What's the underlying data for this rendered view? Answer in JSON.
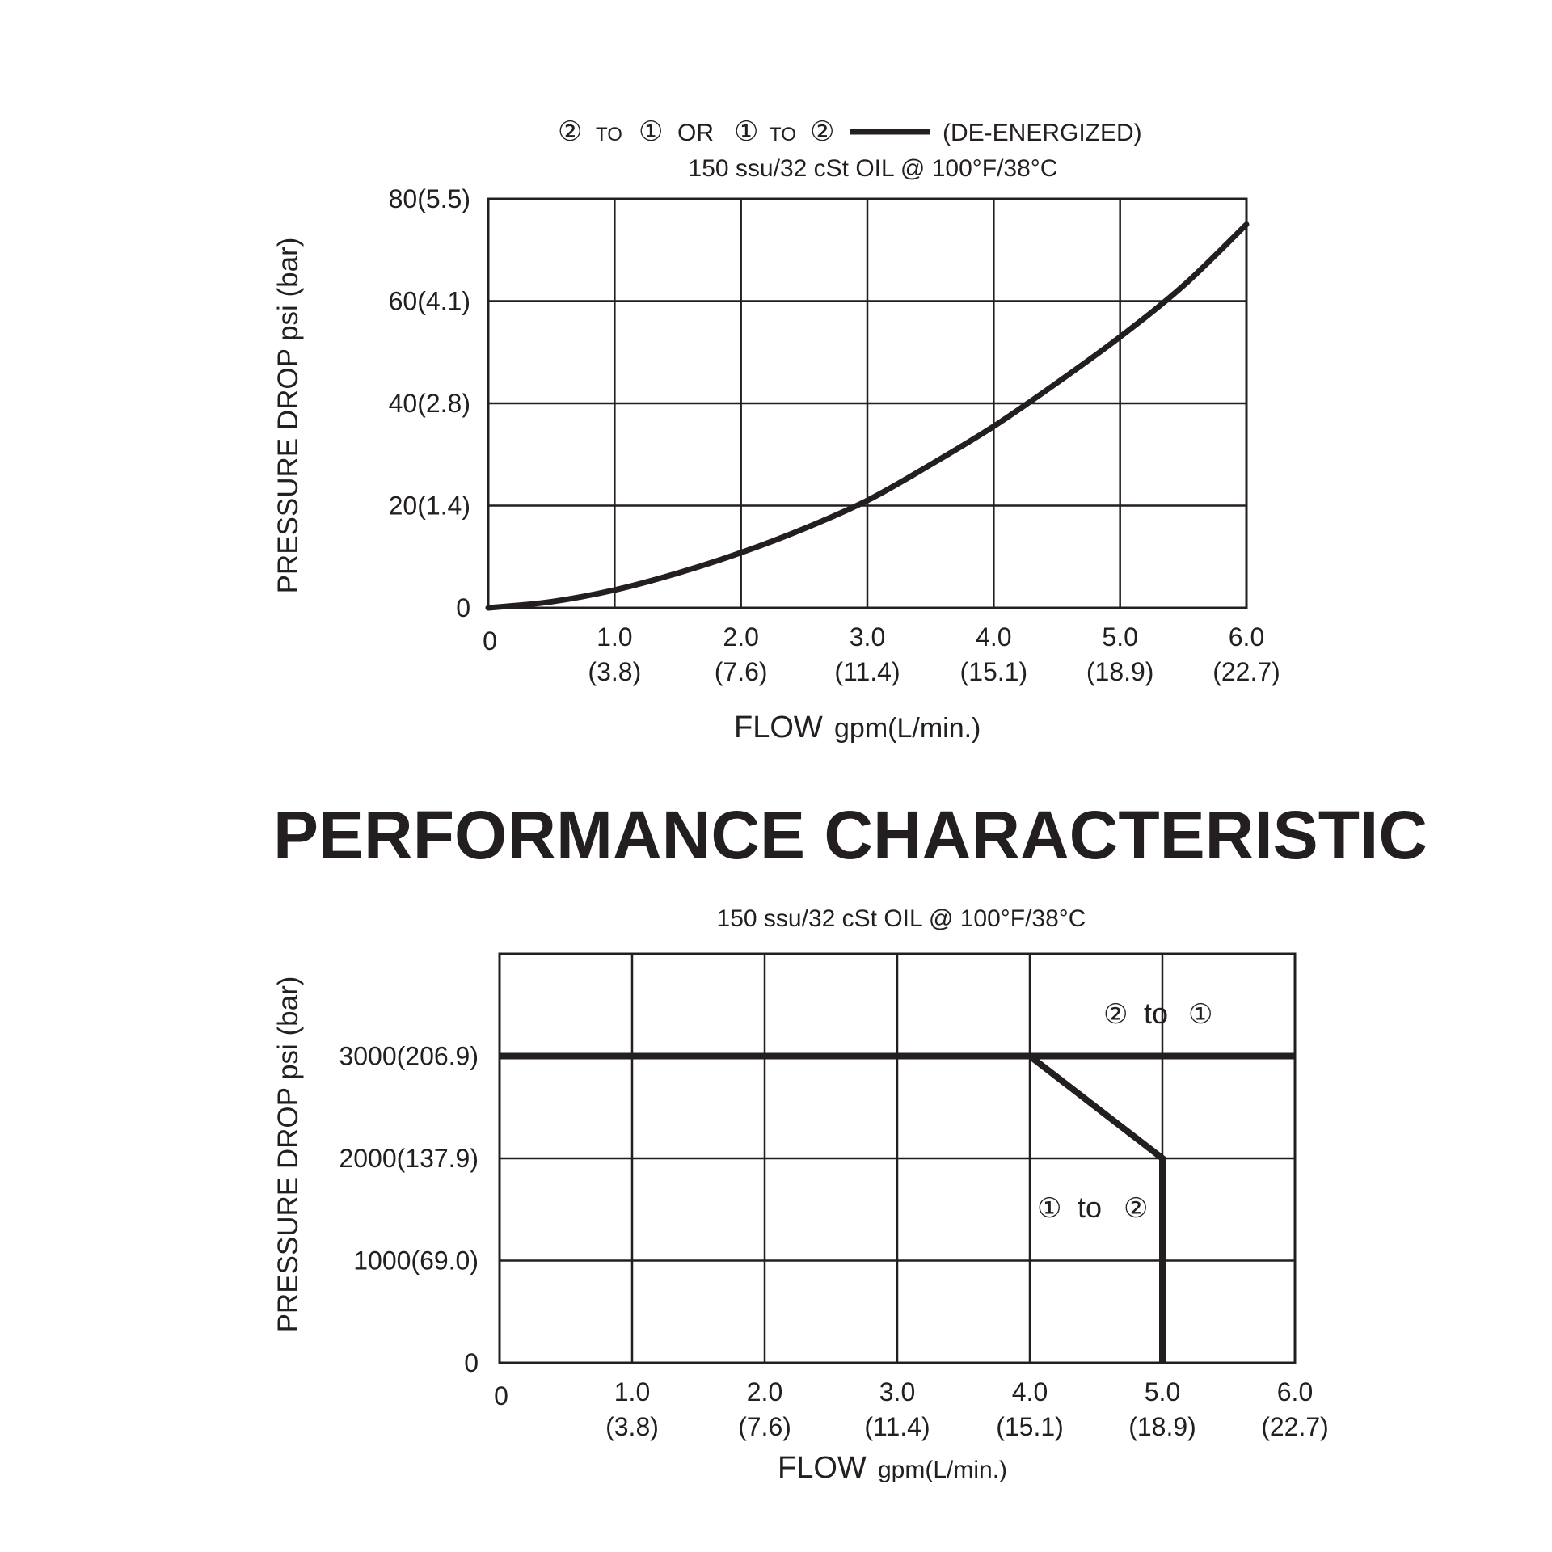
{
  "heading": "PERFORMANCE CHARACTERISTIC",
  "chart_data": [
    {
      "type": "line",
      "legend": {
        "from_a": "②",
        "to_word_a": "TO",
        "to_a": "①",
        "or_word": "OR",
        "from_b": "①",
        "to_word_b": "TO",
        "to_b": "②",
        "label": "(DE-ENERGIZED)"
      },
      "subtitle": "150 ssu/32 cSt OIL @ 100°F/38°C",
      "ylabel": "PRESSURE DROP psi (bar)",
      "xlabel_main": "FLOW",
      "xlabel_unit": "gpm(L/min.)",
      "xlim": [
        0,
        6.0
      ],
      "ylim": [
        0,
        80
      ],
      "grid": true,
      "x_ticks": [
        {
          "value": 0,
          "label": "0",
          "sub": ""
        },
        {
          "value": 1.0,
          "label": "1.0",
          "sub": "(3.8)"
        },
        {
          "value": 2.0,
          "label": "2.0",
          "sub": "(7.6)"
        },
        {
          "value": 3.0,
          "label": "3.0",
          "sub": "(11.4)"
        },
        {
          "value": 4.0,
          "label": "4.0",
          "sub": "(15.1)"
        },
        {
          "value": 5.0,
          "label": "5.0",
          "sub": "(18.9)"
        },
        {
          "value": 6.0,
          "label": "6.0",
          "sub": "(22.7)"
        }
      ],
      "y_ticks": [
        {
          "value": 0,
          "label": "0"
        },
        {
          "value": 20,
          "label": "20(1.4)"
        },
        {
          "value": 40,
          "label": "40(2.8)"
        },
        {
          "value": 60,
          "label": "60(4.1)"
        },
        {
          "value": 80,
          "label": "80(5.5)"
        }
      ],
      "series": [
        {
          "x": [
            0,
            0.5,
            1.0,
            1.5,
            2.0,
            2.5,
            3.0,
            3.5,
            4.0,
            4.5,
            5.0,
            5.5,
            6.0
          ],
          "values": [
            0,
            1.2,
            3.5,
            6.8,
            10.8,
            15.5,
            21,
            28,
            35.5,
            44,
            53,
            63,
            75
          ]
        }
      ]
    },
    {
      "type": "line",
      "subtitle": "150 ssu/32 cSt OIL @ 100°F/38°C",
      "ylabel": "PRESSURE DROP psi (bar)",
      "xlabel_main": "FLOW",
      "xlabel_unit": "gpm(L/min.)",
      "xlim": [
        0,
        6.0
      ],
      "ylim": [
        0,
        4000
      ],
      "grid": true,
      "x_ticks": [
        {
          "value": 0,
          "label": "0",
          "sub": ""
        },
        {
          "value": 1.0,
          "label": "1.0",
          "sub": "(3.8)"
        },
        {
          "value": 2.0,
          "label": "2.0",
          "sub": "(7.6)"
        },
        {
          "value": 3.0,
          "label": "3.0",
          "sub": "(11.4)"
        },
        {
          "value": 4.0,
          "label": "4.0",
          "sub": "(15.1)"
        },
        {
          "value": 5.0,
          "label": "5.0",
          "sub": "(18.9)"
        },
        {
          "value": 6.0,
          "label": "6.0",
          "sub": "(22.7)"
        }
      ],
      "y_ticks": [
        {
          "value": 0,
          "label": "0"
        },
        {
          "value": 1000,
          "label": "1000(69.0)"
        },
        {
          "value": 2000,
          "label": "2000(137.9)"
        },
        {
          "value": 3000,
          "label": "3000(206.9)"
        }
      ],
      "series": [
        {
          "name": "② to ①",
          "x": [
            0,
            6.0
          ],
          "values": [
            3000,
            3000
          ]
        },
        {
          "name": "① to ②",
          "x": [
            4.0,
            5.0,
            5.0
          ],
          "values": [
            3000,
            2000,
            0
          ]
        }
      ],
      "annotations": {
        "upper": {
          "from": "②",
          "word": "to",
          "to": "①"
        },
        "lower": {
          "from": "①",
          "word": "to",
          "to": "②"
        }
      }
    }
  ]
}
